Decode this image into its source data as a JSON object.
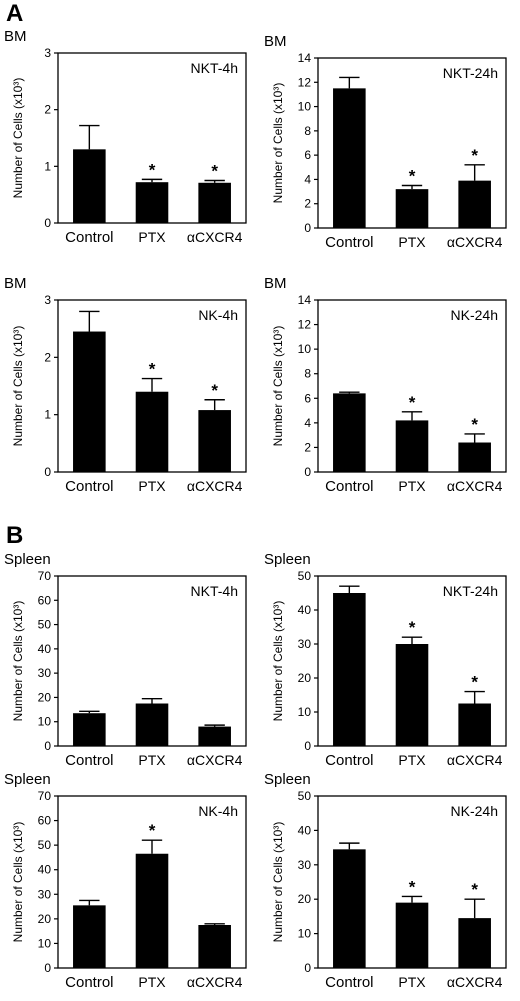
{
  "panels": {
    "A": "A",
    "B": "B"
  },
  "chart_data": [
    {
      "type": "bar",
      "tissue_label": "BM",
      "title": "NKT-4h",
      "ylabel": "Number of Cells (x10³)",
      "ylim": [
        0,
        3
      ],
      "yticks": [
        0,
        1,
        2,
        3
      ],
      "categories": [
        "Control",
        "PTX",
        "αCXCR4"
      ],
      "values": [
        1.3,
        0.72,
        0.71
      ],
      "errors": [
        0.42,
        0.05,
        0.04
      ],
      "significance": [
        "",
        "*",
        "*"
      ]
    },
    {
      "type": "bar",
      "tissue_label": "BM",
      "title": "NKT-24h",
      "ylabel": "Number of Cells (x10³)",
      "ylim": [
        0,
        14
      ],
      "yticks": [
        0,
        2,
        4,
        6,
        8,
        10,
        12,
        14
      ],
      "categories": [
        "Control",
        "PTX",
        "αCXCR4"
      ],
      "values": [
        11.5,
        3.2,
        3.9
      ],
      "errors": [
        0.9,
        0.3,
        1.3
      ],
      "significance": [
        "",
        "*",
        "*"
      ]
    },
    {
      "type": "bar",
      "tissue_label": "BM",
      "title": "NK-4h",
      "ylabel": "Number of Cells (x10³)",
      "ylim": [
        0,
        3
      ],
      "yticks": [
        0,
        1,
        2,
        3
      ],
      "categories": [
        "Control",
        "PTX",
        "αCXCR4"
      ],
      "values": [
        2.45,
        1.4,
        1.08
      ],
      "errors": [
        0.35,
        0.23,
        0.18
      ],
      "significance": [
        "",
        "*",
        "*"
      ]
    },
    {
      "type": "bar",
      "tissue_label": "BM",
      "title": "NK-24h",
      "ylabel": "Number of Cells (x10³)",
      "ylim": [
        0,
        14
      ],
      "yticks": [
        0,
        2,
        4,
        6,
        8,
        10,
        12,
        14
      ],
      "categories": [
        "Control",
        "PTX",
        "αCXCR4"
      ],
      "values": [
        6.4,
        4.2,
        2.4
      ],
      "errors": [
        0.1,
        0.7,
        0.7
      ],
      "significance": [
        "",
        "*",
        "*"
      ]
    },
    {
      "type": "bar",
      "tissue_label": "Spleen",
      "title": "NKT-4h",
      "ylabel": "Number of Cells (x10³)",
      "ylim": [
        0,
        70
      ],
      "yticks": [
        0,
        10,
        20,
        30,
        40,
        50,
        60,
        70
      ],
      "categories": [
        "Control",
        "PTX",
        "αCXCR4"
      ],
      "values": [
        13.5,
        17.5,
        8.0
      ],
      "errors": [
        0.8,
        2.0,
        0.6
      ],
      "significance": [
        "",
        "",
        ""
      ]
    },
    {
      "type": "bar",
      "tissue_label": "Spleen",
      "title": "NKT-24h",
      "ylabel": "Number of Cells (x10³)",
      "ylim": [
        0,
        50
      ],
      "yticks": [
        0,
        10,
        20,
        30,
        40,
        50
      ],
      "categories": [
        "Control",
        "PTX",
        "αCXCR4"
      ],
      "values": [
        45.0,
        30.0,
        12.5
      ],
      "errors": [
        2.0,
        2.0,
        3.5
      ],
      "significance": [
        "",
        "*",
        "*"
      ]
    },
    {
      "type": "bar",
      "tissue_label": "Spleen",
      "title": "NK-4h",
      "ylabel": "Number of Cells (x10³)",
      "ylim": [
        0,
        70
      ],
      "yticks": [
        0,
        10,
        20,
        30,
        40,
        50,
        60,
        70
      ],
      "categories": [
        "Control",
        "PTX",
        "αCXCR4"
      ],
      "values": [
        25.5,
        46.5,
        17.5
      ],
      "errors": [
        2.0,
        5.5,
        0.5
      ],
      "significance": [
        "",
        "*",
        ""
      ]
    },
    {
      "type": "bar",
      "tissue_label": "Spleen",
      "title": "NK-24h",
      "ylabel": "Number of Cells (x10³)",
      "ylim": [
        0,
        50
      ],
      "yticks": [
        0,
        10,
        20,
        30,
        40,
        50
      ],
      "categories": [
        "Control",
        "PTX",
        "αCXCR4"
      ],
      "values": [
        34.5,
        19.0,
        14.5
      ],
      "errors": [
        1.8,
        1.8,
        5.5
      ],
      "significance": [
        "",
        "*",
        "*"
      ]
    }
  ]
}
